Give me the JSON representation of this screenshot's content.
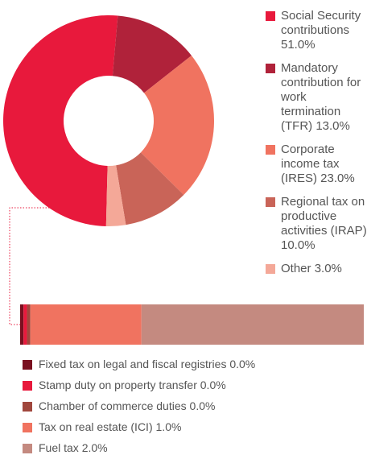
{
  "chart_data": [
    {
      "type": "donut",
      "categories": [
        "Social Security contributions",
        "Mandatory contribution for work termination (TFR)",
        "Corporate income tax (IRES)",
        "Regional tax on productive activities (IRAP)",
        "Other"
      ],
      "values": [
        51.0,
        13.0,
        23.0,
        10.0,
        3.0
      ],
      "value_labels": [
        "51.0%",
        "13.0%",
        "23.0%",
        "10.0%",
        "3.0%"
      ],
      "colors": [
        "#e8193c",
        "#b0223a",
        "#f07360",
        "#c96458",
        "#f4a898"
      ]
    },
    {
      "type": "stacked-bar",
      "categories": [
        "Fixed tax on legal and fiscal registries",
        "Stamp duty on property transfer",
        "Chamber of commerce duties",
        "Tax on real estate (ICI)",
        "Fuel tax"
      ],
      "values": [
        0.03,
        0.03,
        0.03,
        0.98,
        1.96
      ],
      "value_labels": [
        "0.0%",
        "0.0%",
        "0.0%",
        "1.0%",
        "2.0%"
      ],
      "colors": [
        "#7a1020",
        "#e8193c",
        "#a0473d",
        "#f07360",
        "#c48a80"
      ]
    }
  ]
}
